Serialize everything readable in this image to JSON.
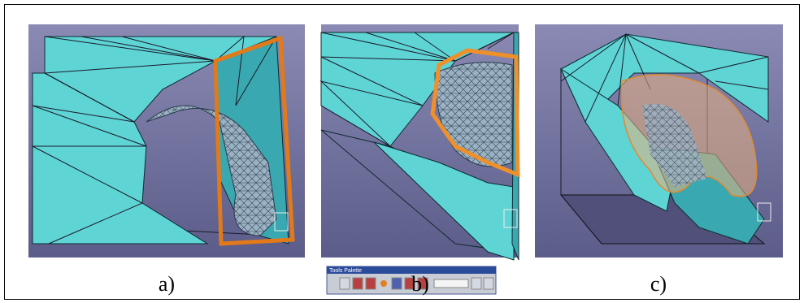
{
  "panels": [
    {
      "caption": "a)"
    },
    {
      "caption": "b)"
    },
    {
      "caption": "c)"
    }
  ],
  "toolbar": {
    "title": "Tools Palette"
  }
}
